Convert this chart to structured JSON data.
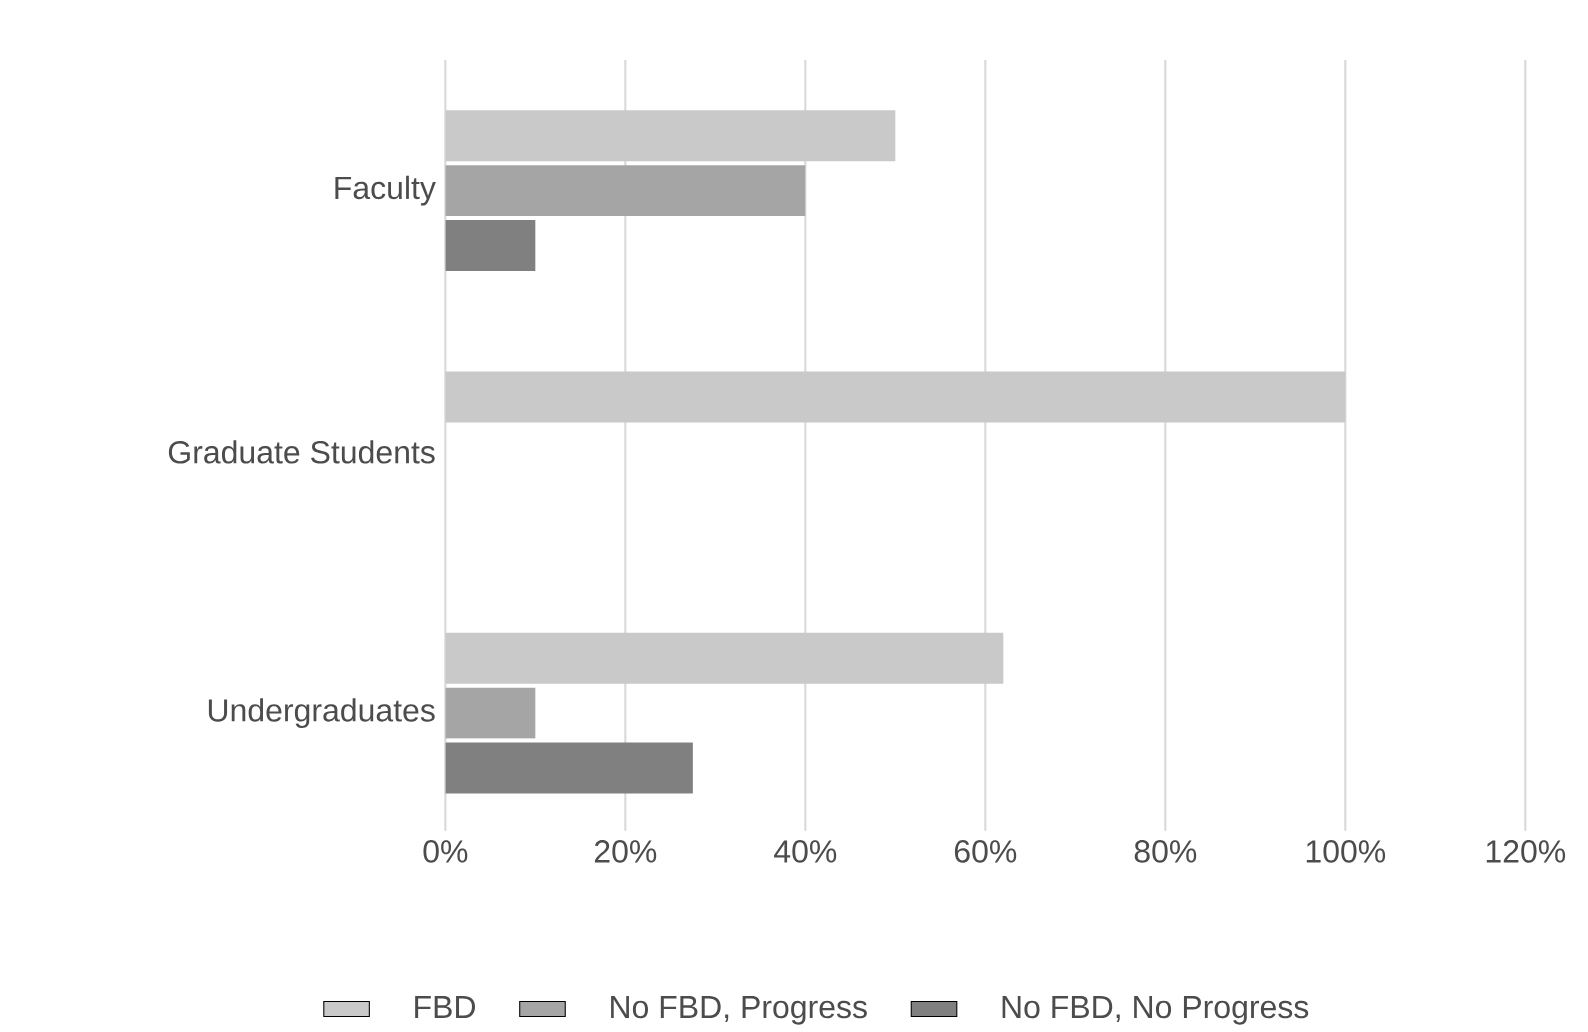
{
  "chart_data": {
    "type": "bar",
    "orientation": "horizontal",
    "categories": [
      "Faculty",
      "Graduate Students",
      "Undergraduates"
    ],
    "series": [
      {
        "name": "FBD",
        "color": "#c9c9c9",
        "values": [
          50,
          100,
          62
        ]
      },
      {
        "name": "No FBD, Progress",
        "color": "#a5a5a5",
        "values": [
          40,
          0,
          10
        ]
      },
      {
        "name": "No FBD, No Progress",
        "color": "#808080",
        "values": [
          10,
          0,
          27.5
        ]
      }
    ],
    "xlim": [
      0,
      120
    ],
    "xticks": [
      {
        "value": 0,
        "label": "0%"
      },
      {
        "value": 20,
        "label": "20%"
      },
      {
        "value": 40,
        "label": "40%"
      },
      {
        "value": 60,
        "label": "60%"
      },
      {
        "value": 80,
        "label": "80%"
      },
      {
        "value": 100,
        "label": "100%"
      },
      {
        "value": 120,
        "label": "120%"
      }
    ],
    "grid": "x",
    "legend": "bottom"
  }
}
